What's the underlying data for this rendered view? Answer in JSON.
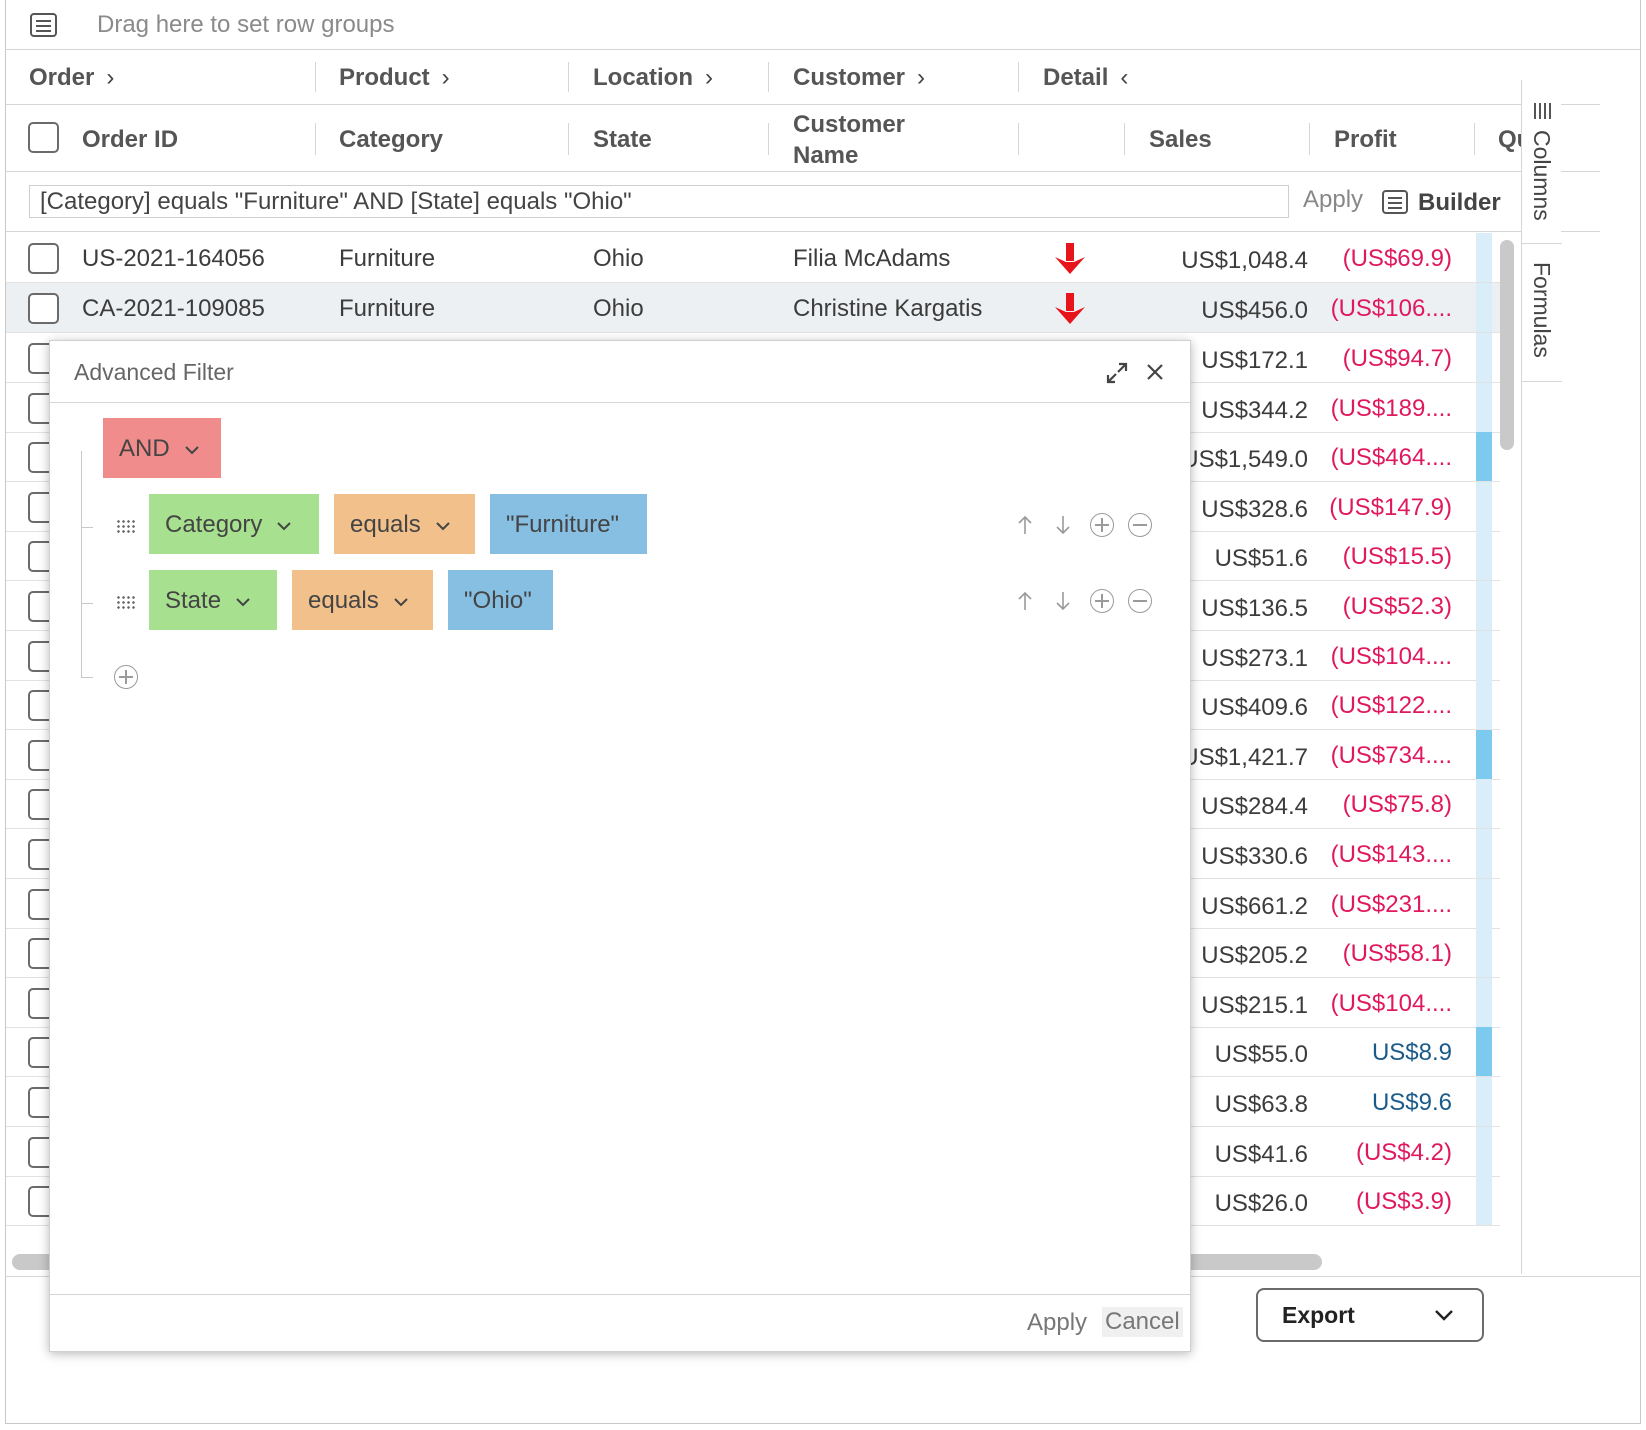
{
  "rowgroup": {
    "placeholder": "Drag here to set row groups",
    "icon": "list-icon"
  },
  "group_headers": [
    {
      "label": "Order",
      "chevron": "›"
    },
    {
      "label": "Product",
      "chevron": "›"
    },
    {
      "label": "Location",
      "chevron": "›"
    },
    {
      "label": "Customer",
      "chevron": "›"
    },
    {
      "label": "Detail",
      "chevron": "‹"
    }
  ],
  "columns": {
    "order_id": "Order ID",
    "category": "Category",
    "state": "State",
    "customer_name_1": "Customer",
    "customer_name_2": "Name",
    "sales": "Sales",
    "profit": "Profit",
    "qty": "Qu"
  },
  "filter_bar": {
    "expression": "[Category] equals \"Furniture\" AND [State] equals \"Ohio\"",
    "apply": "Apply",
    "builder": "Builder"
  },
  "rows": [
    {
      "order_id": "US-2021-164056",
      "category": "Furniture",
      "state": "Ohio",
      "customer": "Filia McAdams",
      "sales": "US$1,048.4",
      "profit": "(US$69.9)"
    },
    {
      "order_id": "CA-2021-109085",
      "category": "Furniture",
      "state": "Ohio",
      "customer": "Christine Kargatis",
      "sales": "US$456.0",
      "profit": "(US$106...."
    }
  ],
  "right_rows": [
    {
      "sales": "US$172.1",
      "profit": "(US$94.7)",
      "negative": true,
      "bar": "light"
    },
    {
      "sales": "US$344.2",
      "profit": "(US$189....",
      "negative": true,
      "bar": "light"
    },
    {
      "sales": "US$1,549.0",
      "profit": "(US$464....",
      "negative": true,
      "bar": "full"
    },
    {
      "sales": "US$328.6",
      "profit": "(US$147.9)",
      "negative": true,
      "bar": "light"
    },
    {
      "sales": "US$51.6",
      "profit": "(US$15.5)",
      "negative": true,
      "bar": "light"
    },
    {
      "sales": "US$136.5",
      "profit": "(US$52.3)",
      "negative": true,
      "bar": "light"
    },
    {
      "sales": "US$273.1",
      "profit": "(US$104....",
      "negative": true,
      "bar": "light"
    },
    {
      "sales": "US$409.6",
      "profit": "(US$122....",
      "negative": true,
      "bar": "light"
    },
    {
      "sales": "US$1,421.7",
      "profit": "(US$734....",
      "negative": true,
      "bar": "full"
    },
    {
      "sales": "US$284.4",
      "profit": "(US$75.8)",
      "negative": true,
      "bar": "light"
    },
    {
      "sales": "US$330.6",
      "profit": "(US$143....",
      "negative": true,
      "bar": "light"
    },
    {
      "sales": "US$661.2",
      "profit": "(US$231....",
      "negative": true,
      "bar": "light"
    },
    {
      "sales": "US$205.2",
      "profit": "(US$58.1)",
      "negative": true,
      "bar": "light"
    },
    {
      "sales": "US$215.1",
      "profit": "(US$104....",
      "negative": true,
      "bar": "light"
    },
    {
      "sales": "US$55.0",
      "profit": "US$8.9",
      "negative": false,
      "bar": "full"
    },
    {
      "sales": "US$63.8",
      "profit": "US$9.6",
      "negative": false,
      "bar": "light"
    },
    {
      "sales": "US$41.6",
      "profit": "(US$4.2)",
      "negative": true,
      "bar": "light"
    },
    {
      "sales": "US$26.0",
      "profit": "(US$3.9)",
      "negative": true,
      "bar": "light"
    }
  ],
  "side_tabs": {
    "columns": "Columns",
    "formulas": "Formulas"
  },
  "export": {
    "label": "Export"
  },
  "dialog": {
    "title": "Advanced Filter",
    "group_operator": "AND",
    "conditions": [
      {
        "column": "Category",
        "operator": "equals",
        "value": "\"Furniture\""
      },
      {
        "column": "State",
        "operator": "equals",
        "value": "\"Ohio\""
      }
    ],
    "apply": "Apply",
    "cancel": "Cancel"
  },
  "colors": {
    "negative": "#e0185e",
    "positive": "#1b5b8a",
    "and_pill": "#f08c8b",
    "column_pill": "#a7e08e",
    "operator_pill": "#f2c08b",
    "value_pill": "#87bfe3",
    "down_arrow": "#e8141c"
  }
}
